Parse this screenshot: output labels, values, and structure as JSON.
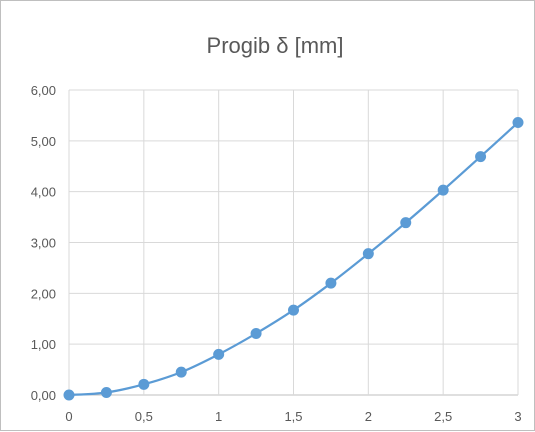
{
  "chart_data": {
    "type": "line",
    "title": "Progib δ [mm]",
    "x": [
      0,
      0.25,
      0.5,
      0.75,
      1,
      1.25,
      1.5,
      1.75,
      2,
      2.25,
      2.5,
      2.75,
      3
    ],
    "series": [
      {
        "values": [
          0.0,
          0.05,
          0.21,
          0.45,
          0.8,
          1.21,
          1.67,
          2.2,
          2.78,
          3.39,
          4.03,
          4.69,
          5.36
        ],
        "color": "#5b9bd5"
      }
    ],
    "xlim": [
      0,
      3
    ],
    "ylim": [
      0,
      6
    ],
    "x_ticks": [
      0,
      0.5,
      1,
      1.5,
      2,
      2.5,
      3
    ],
    "x_tick_labels": [
      "0",
      "0,5",
      "1",
      "1,5",
      "2",
      "2,5",
      "3"
    ],
    "y_ticks": [
      0,
      1,
      2,
      3,
      4,
      5,
      6
    ],
    "y_tick_labels": [
      "0,00",
      "1,00",
      "2,00",
      "3,00",
      "4,00",
      "5,00",
      "6,00"
    ],
    "grid": true,
    "legend": "none",
    "colors": {
      "line": "#5b9bd5",
      "grid": "#d9d9d9",
      "text": "#595959"
    }
  }
}
